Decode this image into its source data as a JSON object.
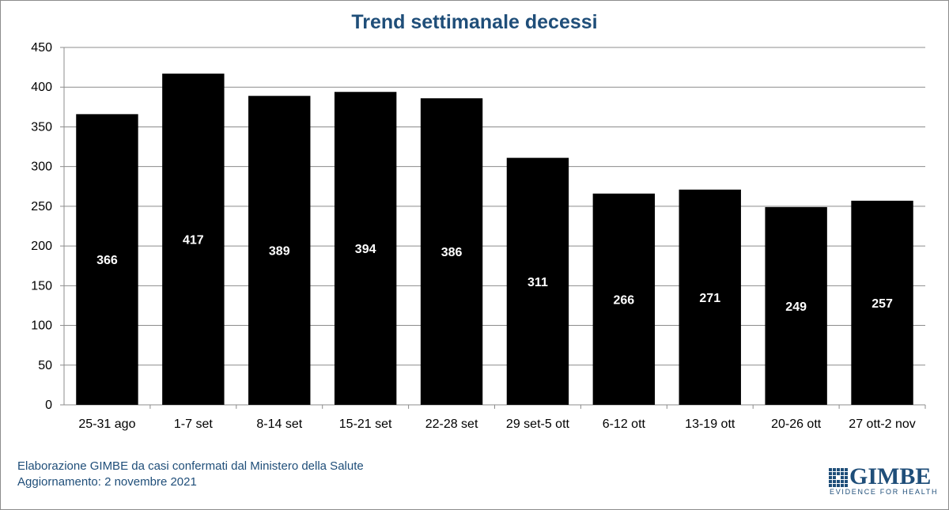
{
  "chart_data": {
    "type": "bar",
    "title": "Trend settimanale decessi",
    "categories": [
      "25-31 ago",
      "1-7 set",
      "8-14 set",
      "15-21 set",
      "22-28 set",
      "29 set-5 ott",
      "6-12 ott",
      "13-19 ott",
      "20-26 ott",
      "27 ott-2 nov"
    ],
    "values": [
      366,
      417,
      389,
      394,
      386,
      311,
      266,
      271,
      249,
      257
    ],
    "ylim": [
      0,
      450
    ],
    "yticks": [
      0,
      50,
      100,
      150,
      200,
      250,
      300,
      350,
      400,
      450
    ],
    "xlabel": "",
    "ylabel": "",
    "grid": true,
    "bar_color": "#000000",
    "label_color": "#ffffff"
  },
  "footer": {
    "source": "Elaborazione GIMBE da casi confermati dal Ministero della Salute",
    "updated": "Aggiornamento:  2 novembre  2021"
  },
  "logo": {
    "name": "GIMBE",
    "tagline": "EVIDENCE FOR HEALTH"
  },
  "colors": {
    "title": "#1f4e79",
    "footer": "#1f4e79",
    "grid": "#8c8c8c"
  }
}
